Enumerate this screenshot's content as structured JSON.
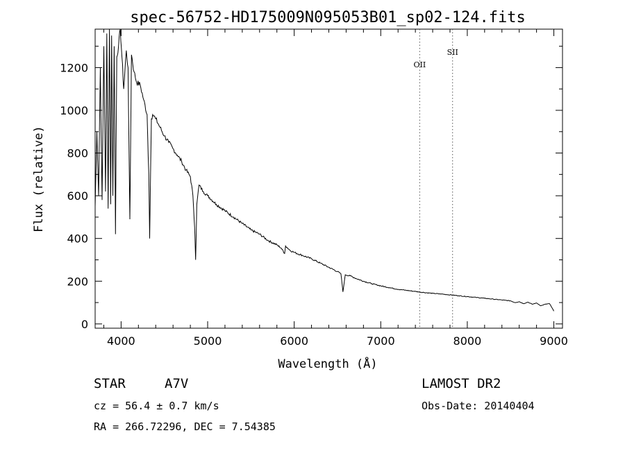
{
  "chart_data": {
    "type": "line",
    "title": "spec-56752-HD175009N095053B01_sp02-124.fits",
    "xlabel": "Wavelength (Å)",
    "ylabel": "Flux (relative)",
    "xlim": [
      3700,
      9100
    ],
    "ylim": [
      -20,
      1380
    ],
    "x_ticks": [
      4000,
      5000,
      6000,
      7000,
      8000,
      9000
    ],
    "y_ticks": [
      0,
      200,
      400,
      600,
      800,
      1000,
      1200
    ],
    "grid": false,
    "series": [
      {
        "x": [
          3700,
          3720,
          3740,
          3760,
          3780,
          3800,
          3820,
          3835,
          3850,
          3865,
          3880,
          3890,
          3905,
          3920,
          3935,
          3950,
          3970,
          3990,
          4010,
          4030,
          4060,
          4080,
          4101,
          4120,
          4150,
          4180,
          4220,
          4260,
          4300,
          4320,
          4330,
          4340,
          4350,
          4365,
          4400,
          4450,
          4500,
          4550,
          4600,
          4650,
          4700,
          4750,
          4800,
          4830,
          4850,
          4861,
          4875,
          4900,
          4950,
          5000,
          5100,
          5200,
          5300,
          5400,
          5500,
          5600,
          5700,
          5800,
          5850,
          5890,
          5900,
          5950,
          6000,
          6100,
          6200,
          6300,
          6400,
          6500,
          6540,
          6563,
          6590,
          6650,
          6700,
          6800,
          6900,
          7000,
          7100,
          7200,
          7300,
          7400,
          7500,
          7600,
          7700,
          7800,
          7900,
          8000,
          8100,
          8200,
          8300,
          8400,
          8500,
          8550,
          8600,
          8650,
          8700,
          8750,
          8800,
          8850,
          8900,
          8950,
          9000
        ],
        "y": [
          550,
          900,
          600,
          1200,
          580,
          1300,
          620,
          1360,
          540,
          1380,
          560,
          1350,
          600,
          1300,
          420,
          1250,
          1300,
          1380,
          1250,
          1100,
          1280,
          1200,
          490,
          1260,
          1180,
          1130,
          1120,
          1050,
          980,
          700,
          400,
          700,
          960,
          980,
          960,
          920,
          880,
          850,
          820,
          790,
          760,
          720,
          690,
          600,
          450,
          300,
          560,
          650,
          620,
          600,
          560,
          530,
          500,
          470,
          440,
          420,
          390,
          370,
          355,
          330,
          365,
          345,
          335,
          320,
          305,
          285,
          265,
          245,
          235,
          150,
          230,
          225,
          215,
          200,
          188,
          178,
          170,
          162,
          157,
          152,
          147,
          143,
          140,
          136,
          132,
          128,
          124,
          120,
          116,
          112,
          108,
          100,
          104,
          95,
          102,
          92,
          98,
          85,
          92,
          95,
          60
        ]
      }
    ],
    "annotations": [
      {
        "text": "OII",
        "x": 7450
      },
      {
        "text": "SII",
        "x": 7830
      }
    ]
  },
  "footer": {
    "object_type": "STAR",
    "subclass": "A7V",
    "survey": "LAMOST DR2",
    "cz": "cz = 56.4 ± 0.7 km/s",
    "obs_date": "Obs-Date: 20140404",
    "radec": "RA = 266.72296, DEC =   7.54385"
  }
}
